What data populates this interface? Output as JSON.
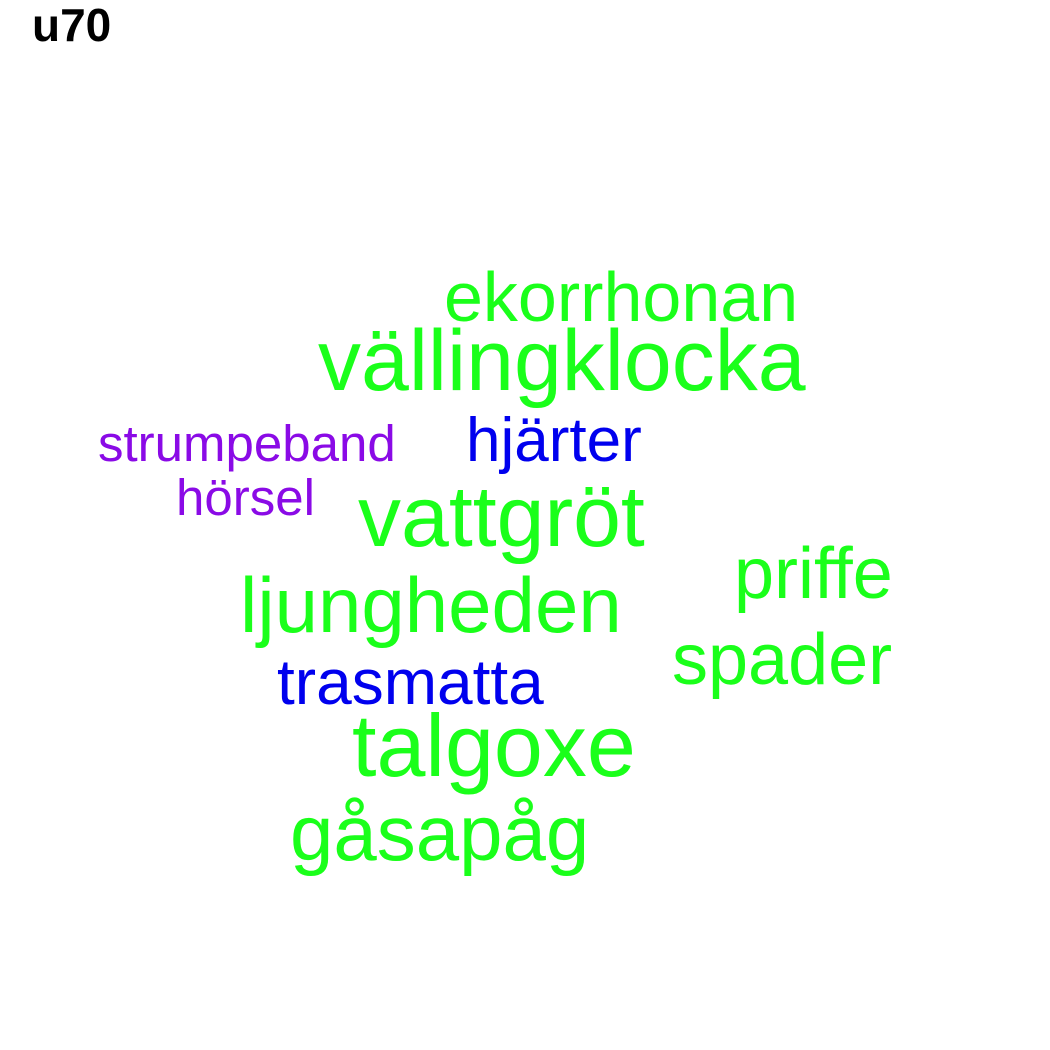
{
  "title": "u70",
  "words": [
    {
      "id": "ekorrhonan",
      "text": "ekorrhonan",
      "color": "#1aff1a"
    },
    {
      "id": "vallingklocka",
      "text": "vällingklocka",
      "color": "#1aff1a"
    },
    {
      "id": "strumpeband",
      "text": "strumpeband",
      "color": "#8a0ae6"
    },
    {
      "id": "hjarter",
      "text": "hjärter",
      "color": "#0000ee"
    },
    {
      "id": "horsel",
      "text": "hörsel",
      "color": "#8a0ae6"
    },
    {
      "id": "vattgrot",
      "text": "vattgröt",
      "color": "#1aff1a"
    },
    {
      "id": "priffe",
      "text": "priffe",
      "color": "#1aff1a"
    },
    {
      "id": "ljungheden",
      "text": "ljungheden",
      "color": "#1aff1a"
    },
    {
      "id": "spader",
      "text": "spader",
      "color": "#1aff1a"
    },
    {
      "id": "trasmatta",
      "text": "trasmatta",
      "color": "#0000ee"
    },
    {
      "id": "talgoxe",
      "text": "talgoxe",
      "color": "#1aff1a"
    },
    {
      "id": "gasapag",
      "text": "gåsapåg",
      "color": "#1aff1a"
    }
  ]
}
